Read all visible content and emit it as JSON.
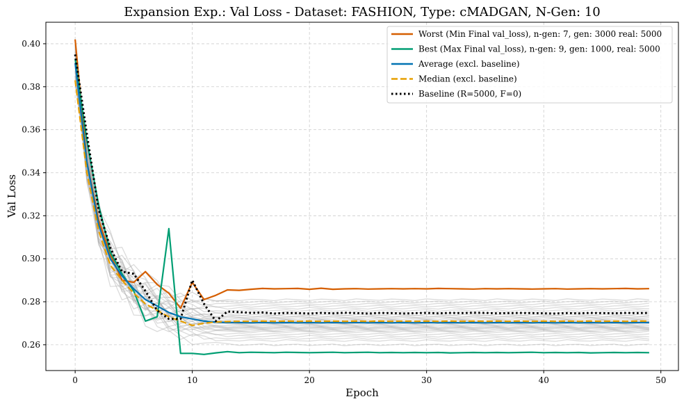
{
  "chart_data": {
    "type": "line",
    "title": "Expansion Exp.: Val Loss - Dataset: FASHION, Type: cMADGAN, N-Gen: 10",
    "xlabel": "Epoch",
    "ylabel": "Val Loss",
    "xlim": [
      -2.5,
      51.5
    ],
    "ylim": [
      0.248,
      0.41
    ],
    "xticks": [
      0,
      10,
      20,
      30,
      40,
      50
    ],
    "yticks": [
      0.26,
      0.28,
      0.3,
      0.32,
      0.34,
      0.36,
      0.38,
      0.4
    ],
    "grid": true,
    "legend_position": "upper right",
    "background_run_color": "#b0b0b0",
    "background_final_values": [
      0.26,
      0.262,
      0.263,
      0.264,
      0.265,
      0.266,
      0.2665,
      0.267,
      0.268,
      0.268,
      0.269,
      0.2695,
      0.27,
      0.2705,
      0.271,
      0.2715,
      0.272,
      0.2725,
      0.273,
      0.274,
      0.275,
      0.276,
      0.277,
      0.278,
      0.279,
      0.28,
      0.281,
      0.2675,
      0.2685,
      0.2735
    ],
    "series": [
      {
        "name": "Worst (Min Final val_loss), n-gen: 7, gen: 3000 real: 5000",
        "color": "#d55e00",
        "style": "solid",
        "values": [
          0.402,
          0.345,
          0.318,
          0.302,
          0.29,
          0.289,
          0.294,
          0.288,
          0.284,
          0.277,
          0.289,
          0.281,
          0.283,
          0.2855,
          0.2853,
          0.2858,
          0.2862,
          0.286,
          0.2861,
          0.2862,
          0.2858,
          0.2863,
          0.2858,
          0.286,
          0.2861,
          0.2859,
          0.286,
          0.2861,
          0.286,
          0.2861,
          0.286,
          0.2862,
          0.2861,
          0.286,
          0.2859,
          0.2861,
          0.286,
          0.2861,
          0.286,
          0.2859,
          0.286,
          0.2861,
          0.2859,
          0.286,
          0.2861,
          0.286,
          0.2861,
          0.2862,
          0.286,
          0.2861
        ]
      },
      {
        "name": "Best (Max Final val_loss), n-gen: 9, gen: 1000, real: 5000",
        "color": "#009e73",
        "style": "solid",
        "values": [
          0.393,
          0.355,
          0.325,
          0.303,
          0.293,
          0.285,
          0.271,
          0.273,
          0.314,
          0.256,
          0.256,
          0.2555,
          0.2562,
          0.2568,
          0.2563,
          0.2565,
          0.2564,
          0.2563,
          0.2565,
          0.2564,
          0.2563,
          0.2564,
          0.2565,
          0.2563,
          0.2564,
          0.2565,
          0.2563,
          0.2564,
          0.2563,
          0.2564,
          0.2563,
          0.2564,
          0.2562,
          0.2563,
          0.2564,
          0.2563,
          0.2564,
          0.2563,
          0.2564,
          0.2565,
          0.2563,
          0.2564,
          0.2563,
          0.2564,
          0.2562,
          0.2563,
          0.2564,
          0.2563,
          0.2564,
          0.2563
        ]
      },
      {
        "name": "Average (excl. baseline)",
        "color": "#0072b2",
        "style": "solid",
        "values": [
          0.391,
          0.345,
          0.316,
          0.3,
          0.292,
          0.286,
          0.281,
          0.278,
          0.275,
          0.273,
          0.272,
          0.271,
          0.2705,
          0.2703,
          0.2703,
          0.2702,
          0.2703,
          0.2702,
          0.2703,
          0.2702,
          0.2703,
          0.2702,
          0.2703,
          0.2702,
          0.2703,
          0.2702,
          0.2703,
          0.2702,
          0.2703,
          0.2702,
          0.2703,
          0.2702,
          0.2703,
          0.2702,
          0.2703,
          0.2702,
          0.2703,
          0.2702,
          0.2703,
          0.2702,
          0.2703,
          0.2702,
          0.2703,
          0.2702,
          0.2703,
          0.2702,
          0.2703,
          0.2702,
          0.2703,
          0.2703
        ]
      },
      {
        "name": "Median (excl. baseline)",
        "color": "#e69f00",
        "style": "dashed",
        "values": [
          0.383,
          0.34,
          0.313,
          0.297,
          0.29,
          0.284,
          0.279,
          0.276,
          0.273,
          0.271,
          0.269,
          0.27,
          0.2706,
          0.2708,
          0.2709,
          0.2709,
          0.271,
          0.2709,
          0.271,
          0.2709,
          0.271,
          0.2709,
          0.271,
          0.2709,
          0.271,
          0.2709,
          0.271,
          0.2709,
          0.271,
          0.2709,
          0.271,
          0.2709,
          0.271,
          0.2709,
          0.271,
          0.2709,
          0.271,
          0.2709,
          0.271,
          0.2709,
          0.271,
          0.2709,
          0.271,
          0.2709,
          0.271,
          0.2709,
          0.271,
          0.2709,
          0.271,
          0.271
        ]
      },
      {
        "name": "Baseline (R=5000, F=0)",
        "color": "#000000",
        "style": "dotted",
        "values": [
          0.395,
          0.358,
          0.323,
          0.305,
          0.294,
          0.293,
          0.285,
          0.276,
          0.272,
          0.272,
          0.29,
          0.279,
          0.271,
          0.2755,
          0.2752,
          0.2748,
          0.275,
          0.2745,
          0.2748,
          0.2747,
          0.2745,
          0.2748,
          0.2746,
          0.2749,
          0.2747,
          0.2745,
          0.2748,
          0.2747,
          0.2745,
          0.2747,
          0.2748,
          0.2746,
          0.2748,
          0.2747,
          0.2749,
          0.2748,
          0.2746,
          0.2747,
          0.2748,
          0.2747,
          0.2746,
          0.2745,
          0.2747,
          0.2746,
          0.2748,
          0.2747,
          0.2746,
          0.2748,
          0.2747,
          0.2748
        ]
      }
    ]
  }
}
